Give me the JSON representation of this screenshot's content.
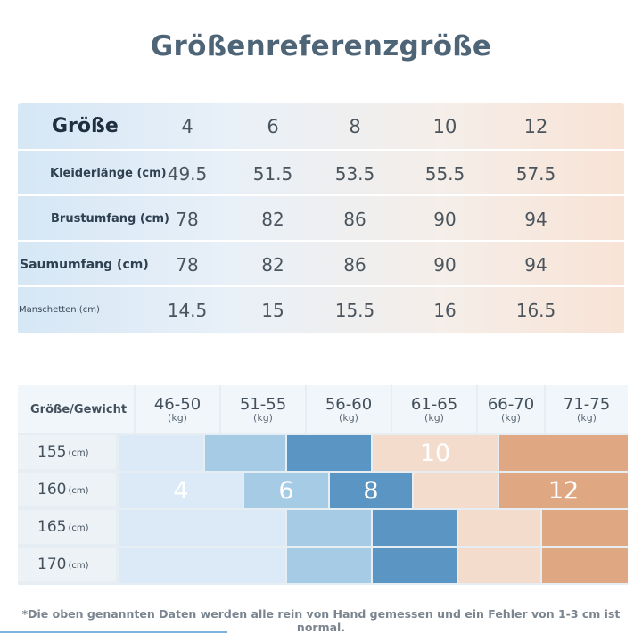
{
  "title": "Größenreferenzgröße",
  "table1": {
    "header": {
      "label": "Größe",
      "sizes": [
        "4",
        "6",
        "8",
        "10",
        "12"
      ]
    },
    "rows": [
      {
        "label": "Kleiderlänge (cm)",
        "values": [
          "49.5",
          "51.5",
          "53.5",
          "55.5",
          "57.5"
        ]
      },
      {
        "label": "Brustumfang (cm)",
        "values": [
          "78",
          "82",
          "86",
          "90",
          "94"
        ]
      },
      {
        "label": "Saumumfang (cm)",
        "values": [
          "78",
          "82",
          "86",
          "90",
          "94"
        ]
      },
      {
        "label": "Manschetten (cm)",
        "values": [
          "14.5",
          "15",
          "15.5",
          "16",
          "16.5"
        ]
      }
    ]
  },
  "table2": {
    "corner": "Größe/Gewicht",
    "weight_unit": "(kg)",
    "height_unit": "(cm)",
    "weights": [
      "46-50",
      "51-55",
      "56-60",
      "61-65",
      "66-70",
      "71-75"
    ],
    "heights": [
      "155",
      "160",
      "165",
      "170"
    ],
    "size_labels": {
      "s4": "4",
      "s6": "6",
      "s8": "8",
      "s10": "10",
      "s12": "12"
    },
    "colors": {
      "light_blue": "#dbeaf6",
      "mid_blue": "#a6cbe5",
      "blue": "#5b95c4",
      "peach": "#f4dccd",
      "tan": "#dfa882"
    }
  },
  "footnote": "*Die oben genannten Daten werden alle rein von Hand gemessen und ein Fehler von 1-3 cm ist normal."
}
